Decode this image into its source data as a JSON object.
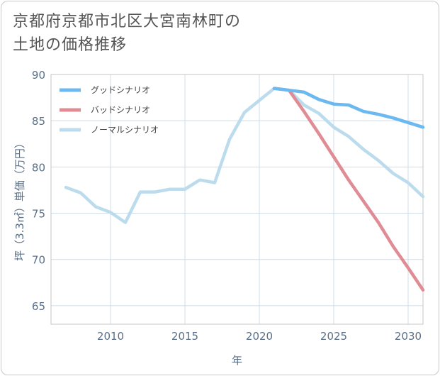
{
  "title_line1": "京都府京都市北区大宮南林町の",
  "title_line2": "土地の価格推移",
  "colors": {
    "good": "#6cb8f0",
    "bad": "#e08c94",
    "normal": "#bcdcee",
    "grid": "#cfdce8",
    "axis_text": "#5a6f86"
  },
  "chart_data": {
    "type": "line",
    "xlabel": "年",
    "ylabel": "坪（3.3㎡）単価（万円）",
    "xlim": [
      2006,
      2031
    ],
    "ylim": [
      63,
      90
    ],
    "xticks": [
      2010,
      2015,
      2020,
      2025,
      2030
    ],
    "yticks": [
      65,
      70,
      75,
      80,
      85,
      90
    ],
    "legend_position": "top-left",
    "series": [
      {
        "name": "グッドシナリオ",
        "color": "#6cb8f0",
        "x": [
          2021,
          2022,
          2023,
          2024,
          2025,
          2026,
          2027,
          2028,
          2029,
          2030,
          2031
        ],
        "y": [
          88.5,
          88.3,
          88.1,
          87.3,
          86.8,
          86.7,
          86.0,
          85.7,
          85.3,
          84.8,
          84.3
        ]
      },
      {
        "name": "バッドシナリオ",
        "color": "#e08c94",
        "x": [
          2021,
          2022,
          2023,
          2024,
          2025,
          2026,
          2027,
          2028,
          2029,
          2030,
          2031
        ],
        "y": [
          88.5,
          88.3,
          86.0,
          83.6,
          81.1,
          78.6,
          76.3,
          74.0,
          71.4,
          69.1,
          66.7
        ]
      },
      {
        "name": "ノーマルシナリオ",
        "color": "#bcdcee",
        "x": [
          2007,
          2008,
          2009,
          2010,
          2011,
          2012,
          2013,
          2014,
          2015,
          2016,
          2017,
          2018,
          2019,
          2020,
          2021,
          2022,
          2023,
          2024,
          2025,
          2026,
          2027,
          2028,
          2029,
          2030,
          2031
        ],
        "y": [
          77.8,
          77.2,
          75.7,
          75.1,
          74.0,
          77.3,
          77.3,
          77.6,
          77.6,
          78.6,
          78.3,
          83.0,
          85.9,
          87.2,
          88.5,
          88.3,
          86.7,
          85.8,
          84.3,
          83.3,
          81.9,
          80.7,
          79.3,
          78.3,
          76.8
        ]
      }
    ]
  }
}
